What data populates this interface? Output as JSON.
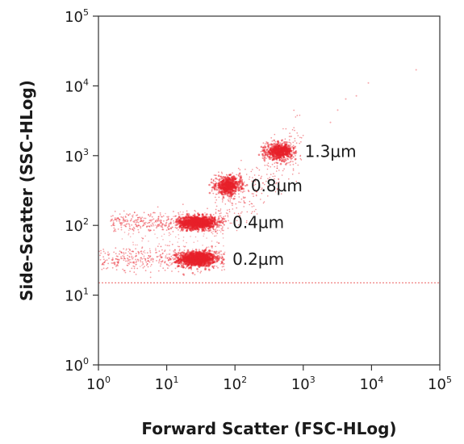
{
  "chart_data": {
    "type": "scatter",
    "title": "",
    "xlabel": "Forward Scatter (FSC-HLog)",
    "ylabel": "Side-Scatter (SSC-HLog)",
    "x_scale": "log",
    "y_scale": "log",
    "xlim": [
      1,
      100000
    ],
    "ylim": [
      1,
      100000
    ],
    "x_ticks": [
      {
        "value": 1,
        "base": "10",
        "exp": "0"
      },
      {
        "value": 10,
        "base": "10",
        "exp": "1"
      },
      {
        "value": 100,
        "base": "10",
        "exp": "2"
      },
      {
        "value": 1000,
        "base": "10",
        "exp": "3"
      },
      {
        "value": 10000,
        "base": "10",
        "exp": "4"
      },
      {
        "value": 100000,
        "base": "10",
        "exp": "5"
      }
    ],
    "y_ticks": [
      {
        "value": 1,
        "base": "10",
        "exp": "0"
      },
      {
        "value": 10,
        "base": "10",
        "exp": "1"
      },
      {
        "value": 100,
        "base": "10",
        "exp": "2"
      },
      {
        "value": 1000,
        "base": "10",
        "exp": "3"
      },
      {
        "value": 10000,
        "base": "10",
        "exp": "4"
      },
      {
        "value": 100000,
        "base": "10",
        "exp": "5"
      }
    ],
    "grid": false,
    "point_color": "#e8202a",
    "threshold_line": {
      "y": 15,
      "color": "#f08080",
      "style": "dotted"
    },
    "populations": [
      {
        "name": "0.2µm",
        "label": "0.2µm",
        "fsc_center": 28,
        "ssc_center": 33,
        "fsc_range": [
          1,
          70
        ],
        "ssc_spread": 0.07
      },
      {
        "name": "0.4µm",
        "label": "0.4µm",
        "fsc_center": 28,
        "ssc_center": 110,
        "fsc_range": [
          1.5,
          70
        ],
        "ssc_spread": 0.06
      },
      {
        "name": "0.8µm",
        "label": "0.8µm",
        "fsc_center": 80,
        "ssc_center": 370,
        "fsc_range": [
          45,
          130
        ],
        "ssc_spread": 0.08
      },
      {
        "name": "1.3µm",
        "label": "1.3µm",
        "fsc_center": 450,
        "ssc_center": 1150,
        "fsc_range": [
          250,
          800
        ],
        "ssc_spread": 0.07
      }
    ]
  }
}
